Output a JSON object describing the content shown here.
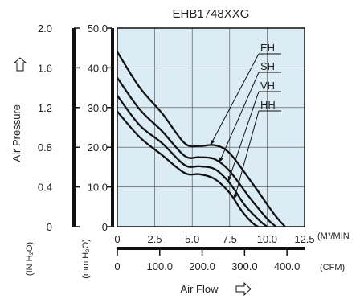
{
  "chart_data": {
    "type": "line",
    "title": "EHB1748XXG",
    "xlabel": "Air Flow",
    "ylabel": "Air Pressure",
    "x_unit_primary": "(M³/MIN",
    "x_unit_secondary": "(CFM)",
    "y_unit_inh2o": "(IN H₂O)",
    "y_unit_mmh2o": "(mm H₂O)",
    "xlim": [
      0,
      12.5
    ],
    "ylim": [
      0,
      50
    ],
    "x_ticks_m3min": [
      "0",
      "2.5",
      "5.0",
      "7.5",
      "10.0",
      "12.5"
    ],
    "x_ticks_cfm": [
      "0",
      "100.0",
      "200.0",
      "300.0",
      "400.0"
    ],
    "y_ticks_mm": [
      "0",
      "10.0",
      "20.0",
      "30.0",
      "40.0",
      "50.0"
    ],
    "y_ticks_in": [
      "0",
      "0.4",
      "0.8",
      "1.2",
      "1.6",
      "2.0"
    ],
    "grid": true,
    "background_color": "#dcecf4",
    "line_color": "#111111",
    "series": [
      {
        "name": "EH",
        "x": [
          0,
          1.5,
          3.0,
          4.5,
          5.5,
          6.5,
          7.5,
          9.0,
          10.5,
          11.2
        ],
        "y": [
          44.0,
          35.0,
          28.5,
          21.0,
          20.3,
          20.5,
          18.5,
          11.0,
          3.0,
          0
        ]
      },
      {
        "name": "SH",
        "x": [
          0,
          1.5,
          3.0,
          4.5,
          5.5,
          6.5,
          7.5,
          8.8,
          10.0,
          10.6
        ],
        "y": [
          37.5,
          29.5,
          24.0,
          17.8,
          17.5,
          17.0,
          14.0,
          7.5,
          2.0,
          0
        ]
      },
      {
        "name": "VH",
        "x": [
          0,
          1.5,
          3.0,
          4.5,
          5.5,
          6.5,
          7.5,
          8.5,
          9.5,
          10.0
        ],
        "y": [
          33.0,
          25.5,
          21.0,
          15.5,
          15.2,
          14.5,
          11.0,
          5.5,
          1.5,
          0
        ]
      },
      {
        "name": "HH",
        "x": [
          0,
          1.5,
          3.0,
          4.5,
          5.5,
          6.5,
          7.5,
          8.3,
          9.0,
          9.4
        ],
        "y": [
          29.0,
          22.5,
          18.0,
          13.5,
          13.2,
          12.0,
          8.5,
          4.0,
          1.0,
          0
        ]
      }
    ],
    "annotations": [
      "EH",
      "SH",
      "VH",
      "HH"
    ]
  }
}
